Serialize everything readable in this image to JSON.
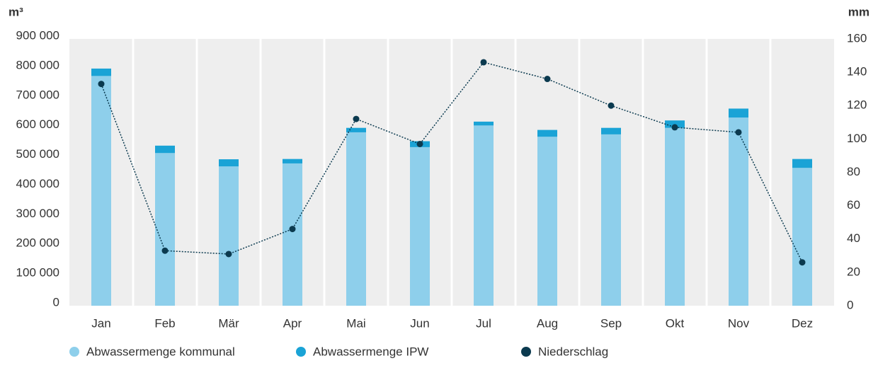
{
  "chart_data": {
    "type": "bar",
    "y_label": "m³",
    "y2_label": "mm",
    "categories": [
      "Jan",
      "Feb",
      "Mär",
      "Apr",
      "Mai",
      "Jun",
      "Jul",
      "Aug",
      "Sep",
      "Okt",
      "Nov",
      "Dez"
    ],
    "series": [
      {
        "name": "Abwassermenge kommunal",
        "color": "#8ecfeb",
        "values": [
          775000,
          515000,
          470000,
          480000,
          585000,
          535000,
          608000,
          570000,
          578000,
          600000,
          635000,
          465000
        ]
      },
      {
        "name": "Abwassermenge IPW",
        "color": "#1aa3d6",
        "values": [
          25000,
          25000,
          24000,
          15000,
          15000,
          20000,
          13000,
          23000,
          22000,
          25000,
          30000,
          30000
        ]
      },
      {
        "name": "Niederschlag",
        "color": "#0b3a4f",
        "type": "line",
        "axis": "y2",
        "values": [
          133,
          33,
          31,
          46,
          112,
          97,
          146,
          136,
          120,
          107,
          104,
          26
        ]
      }
    ],
    "ylim": [
      0,
      900000
    ],
    "yticks": [
      0,
      {
        "value": 100000,
        "label": "100 000"
      },
      {
        "value": 200000,
        "label": "200 000"
      },
      {
        "value": 300000,
        "label": "300 000"
      },
      {
        "value": 400000,
        "label": "400 000"
      },
      {
        "value": 500000,
        "label": "500 000"
      },
      {
        "value": 600000,
        "label": "600 000"
      },
      {
        "value": 700000,
        "label": "700 000"
      },
      {
        "value": 800000,
        "label": "800 000"
      },
      {
        "value": 900000,
        "label": "900 000"
      }
    ],
    "y2lim": [
      0,
      160
    ],
    "y2ticks": [
      0,
      20,
      40,
      60,
      80,
      100,
      120,
      140,
      160
    ],
    "legend": "bottom-left"
  }
}
